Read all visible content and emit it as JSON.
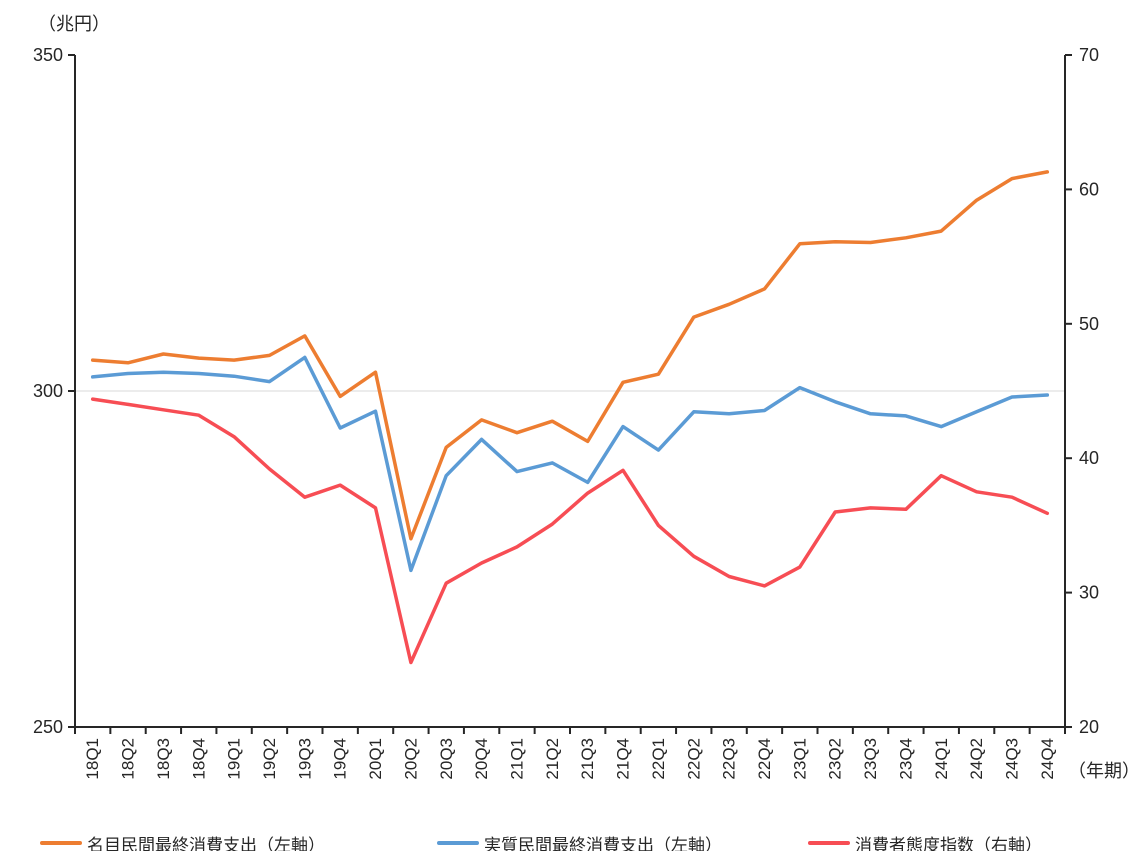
{
  "chart_data": {
    "type": "line",
    "title": "",
    "categories": [
      "18Q1",
      "18Q2",
      "18Q3",
      "18Q4",
      "19Q1",
      "19Q2",
      "19Q3",
      "19Q4",
      "20Q1",
      "20Q2",
      "20Q3",
      "20Q4",
      "21Q1",
      "21Q2",
      "21Q3",
      "21Q4",
      "22Q1",
      "22Q2",
      "22Q3",
      "22Q4",
      "23Q1",
      "23Q2",
      "23Q3",
      "23Q4",
      "24Q1",
      "24Q2",
      "24Q3",
      "24Q4"
    ],
    "series": [
      {
        "name": "名目民間最終消費支出（左軸）",
        "axis": "left",
        "color": "#ED7D31",
        "values": [
          304.6,
          304.2,
          305.5,
          304.9,
          304.6,
          305.3,
          308.2,
          299.2,
          302.8,
          278.0,
          291.6,
          295.7,
          293.8,
          295.5,
          292.5,
          301.3,
          302.5,
          311.0,
          312.9,
          315.2,
          321.9,
          322.2,
          322.1,
          322.8,
          323.8,
          328.4,
          331.6,
          332.6
        ]
      },
      {
        "name": "実質民間最終消費支出（左軸）",
        "axis": "left",
        "color": "#5B9BD5",
        "values": [
          302.1,
          302.6,
          302.8,
          302.6,
          302.2,
          301.4,
          305.0,
          294.5,
          297.0,
          273.3,
          287.4,
          292.8,
          288.0,
          289.3,
          286.4,
          294.7,
          291.2,
          296.9,
          296.6,
          297.1,
          300.5,
          298.4,
          296.6,
          296.3,
          294.7,
          296.9,
          299.1,
          299.4
        ]
      },
      {
        "name": "消費者態度指数（右軸）",
        "axis": "right",
        "color": "#F74D54",
        "values": [
          44.4,
          44.0,
          43.6,
          43.2,
          41.6,
          39.2,
          37.1,
          38.0,
          36.3,
          24.8,
          30.7,
          32.2,
          33.4,
          35.1,
          37.4,
          39.1,
          35.0,
          32.7,
          31.2,
          30.5,
          31.9,
          36.0,
          36.3,
          36.2,
          38.7,
          37.5,
          37.1,
          35.9
        ]
      }
    ],
    "left_axis": {
      "label": "（兆円）",
      "min": 250,
      "max": 350,
      "ticks": [
        250,
        300,
        350
      ]
    },
    "right_axis": {
      "min": 20,
      "max": 70,
      "ticks": [
        20,
        30,
        40,
        50,
        60,
        70
      ]
    },
    "x_axis": {
      "label": "（年期）"
    },
    "gridlines_left": [
      300
    ],
    "grid": "single-line-at-300",
    "legend_position": "bottom",
    "colors": {
      "axis": "#262626",
      "gridline": "#D9D9D9",
      "text": "#262626"
    }
  }
}
